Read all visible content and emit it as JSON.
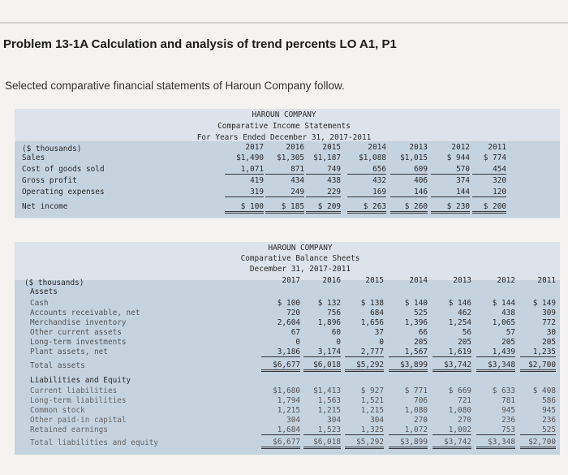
{
  "page": {
    "title": "Problem 13-1A Calculation and analysis of trend percents LO A1, P1",
    "subtitle": "Selected comparative financial statements of Haroun Company follow."
  },
  "income_statement": {
    "company": "HAROUN COMPANY",
    "statement": "Comparative Income Statements",
    "period": "For Years Ended December 31, 2017-2011",
    "units_label": "($ thousands)",
    "years": [
      "2017",
      "2016",
      "2015",
      "2014",
      "2013",
      "2012",
      "2011"
    ],
    "rows": [
      {
        "label": "Sales",
        "values": [
          "$1,490",
          "$1,305",
          "$1,187",
          "$1,088",
          "$1,015",
          "$ 944",
          "$ 774"
        ]
      },
      {
        "label": "Cost of goods sold",
        "values": [
          "1,071",
          "871",
          "749",
          "656",
          "609",
          "570",
          "454"
        ]
      },
      {
        "label": "Gross profit",
        "values": [
          "419",
          "434",
          "438",
          "432",
          "406",
          "374",
          "320"
        ]
      },
      {
        "label": "Operating expenses",
        "values": [
          "319",
          "249",
          "229",
          "169",
          "146",
          "144",
          "120"
        ]
      },
      {
        "label": "Net income",
        "values": [
          "$ 100",
          "$ 185",
          "$ 209",
          "$ 263",
          "$ 260",
          "$ 230",
          "$ 200"
        ]
      }
    ]
  },
  "balance_sheet": {
    "company": "HAROUN COMPANY",
    "statement": "Comparative Balance Sheets",
    "period": "December 31, 2017-2011",
    "units_label": "($ thousands)",
    "years": [
      "2017",
      "2016",
      "2015",
      "2014",
      "2013",
      "2012",
      "2011"
    ],
    "assets_heading": "Assets",
    "asset_rows": [
      {
        "label": "Cash",
        "values": [
          "$ 100",
          "$ 132",
          "$ 138",
          "$ 140",
          "$ 146",
          "$ 144",
          "$ 149"
        ]
      },
      {
        "label": "Accounts receivable, net",
        "values": [
          "720",
          "756",
          "684",
          "525",
          "462",
          "438",
          "309"
        ]
      },
      {
        "label": "Merchandise inventory",
        "values": [
          "2,604",
          "1,896",
          "1,656",
          "1,396",
          "1,254",
          "1,065",
          "772"
        ]
      },
      {
        "label": "Other current assets",
        "values": [
          "67",
          "60",
          "37",
          "66",
          "56",
          "57",
          "30"
        ]
      },
      {
        "label": "Long-term investments",
        "values": [
          "0",
          "0",
          "0",
          "205",
          "205",
          "205",
          "205"
        ]
      },
      {
        "label": "Plant assets, net",
        "values": [
          "3,186",
          "3,174",
          "2,777",
          "1,567",
          "1,619",
          "1,439",
          "1,235"
        ]
      }
    ],
    "total_assets": {
      "label": "Total assets",
      "values": [
        "$6,677",
        "$6,018",
        "$5,292",
        "$3,899",
        "$3,742",
        "$3,348",
        "$2,700"
      ]
    },
    "liab_heading": "Liabilities and Equity",
    "liab_rows": [
      {
        "label": "Current liabilities",
        "values": [
          "$1,680",
          "$1,413",
          "$ 927",
          "$ 771",
          "$ 669",
          "$ 633",
          "$ 408"
        ]
      },
      {
        "label": "Long-term liabilities",
        "values": [
          "1,794",
          "1,563",
          "1,521",
          "706",
          "721",
          "781",
          "586"
        ]
      },
      {
        "label": "Common stock",
        "values": [
          "1,215",
          "1,215",
          "1,215",
          "1,080",
          "1,080",
          "945",
          "945"
        ]
      },
      {
        "label": "Other paid-in capital",
        "values": [
          "304",
          "304",
          "304",
          "270",
          "270",
          "236",
          "236"
        ]
      },
      {
        "label": "Retained earnings",
        "values": [
          "1,684",
          "1,523",
          "1,325",
          "1,072",
          "1,002",
          "753",
          "525"
        ]
      }
    ],
    "total_liab": {
      "label": "Total liabilities and equity",
      "values": [
        "$6,677",
        "$6,018",
        "$5,292",
        "$3,899",
        "$3,742",
        "$3,348",
        "$2,700"
      ]
    }
  }
}
